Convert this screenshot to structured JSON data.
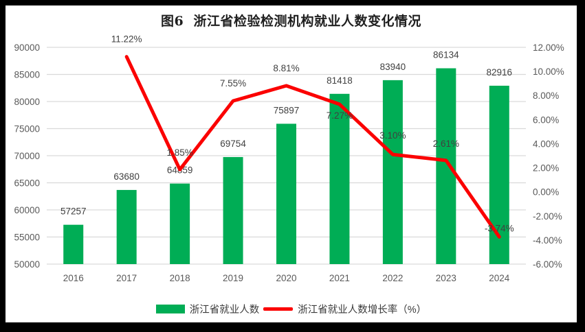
{
  "frame": {
    "background_color": "#000000",
    "canvas_color": "#FFFFFF"
  },
  "chart_data": {
    "type": "combo-bar-line",
    "title": "图6  浙江省检验检测机构就业人数变化情况",
    "categories": [
      "2016",
      "2017",
      "2018",
      "2019",
      "2020",
      "2021",
      "2022",
      "2023",
      "2024"
    ],
    "series": [
      {
        "name": "浙江省就业人数",
        "type": "bar",
        "axis": "left",
        "color": "#00AD55",
        "values": [
          57257,
          63680,
          64859,
          69754,
          75897,
          81418,
          83940,
          86134,
          82916
        ],
        "labels": [
          "57257",
          "63680",
          "64859",
          "69754",
          "75897",
          "81418",
          "83940",
          "86134",
          "82916"
        ]
      },
      {
        "name": "浙江省就业人数增长率（%）",
        "type": "line",
        "axis": "right",
        "color": "#FB0000",
        "values": [
          null,
          11.22,
          1.85,
          7.55,
          8.81,
          7.27,
          3.1,
          2.61,
          -3.74
        ],
        "labels": [
          null,
          "11.22%",
          "1.85%",
          "7.55%",
          "8.81%",
          "7.27%",
          "3.10%",
          "2.61%",
          "-3.74%"
        ],
        "label_dy": [
          null,
          -21,
          -20,
          -21,
          -21,
          21,
          -23,
          -20,
          -8
        ]
      }
    ],
    "left_axis": {
      "min": 50000,
      "max": 90000,
      "step": 5000,
      "ticks": [
        "90000",
        "85000",
        "80000",
        "75000",
        "70000",
        "65000",
        "60000",
        "55000",
        "50000"
      ]
    },
    "right_axis": {
      "min": -6,
      "max": 12,
      "step": 2,
      "ticks": [
        "12.00%",
        "10.00%",
        "8.00%",
        "6.00%",
        "4.00%",
        "2.00%",
        "0.00%",
        "-2.00%",
        "-4.00%",
        "-6.00%"
      ]
    },
    "grid": true,
    "gridline_color": "#D9D9D9",
    "axis_text_color": "#595959",
    "data_label_color": "#404040",
    "legend": {
      "position": "bottom",
      "items": [
        {
          "label": "浙江省就业人数",
          "swatch": "bar",
          "color": "#00AD55"
        },
        {
          "label": "浙江省就业人数增长率（%）",
          "swatch": "line",
          "color": "#FB0000"
        }
      ]
    }
  }
}
